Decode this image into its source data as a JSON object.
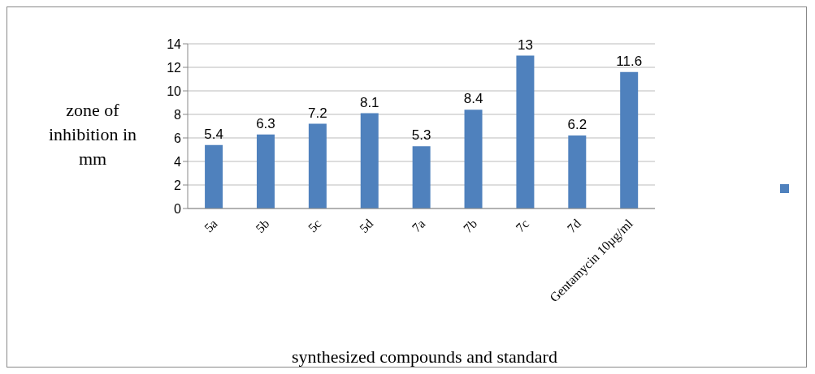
{
  "chart_data": {
    "type": "bar",
    "xlabel": "synthesized compounds and standard",
    "ylabel": "zone of inhibition in mm",
    "categories": [
      "5a",
      "5b",
      "5c",
      "5d",
      "7a",
      "7b",
      "7c",
      "7d",
      "Gentamycin 10µg/ml"
    ],
    "series": [
      {
        "color": "#4f81bd",
        "values": [
          5.4,
          6.3,
          7.2,
          8.1,
          5.3,
          8.4,
          13,
          6.2,
          11.6
        ]
      }
    ],
    "ylim": [
      0,
      14
    ],
    "yticks": [
      0,
      2,
      4,
      6,
      8,
      10,
      12,
      14
    ],
    "grid": "y",
    "data_labels": true
  }
}
